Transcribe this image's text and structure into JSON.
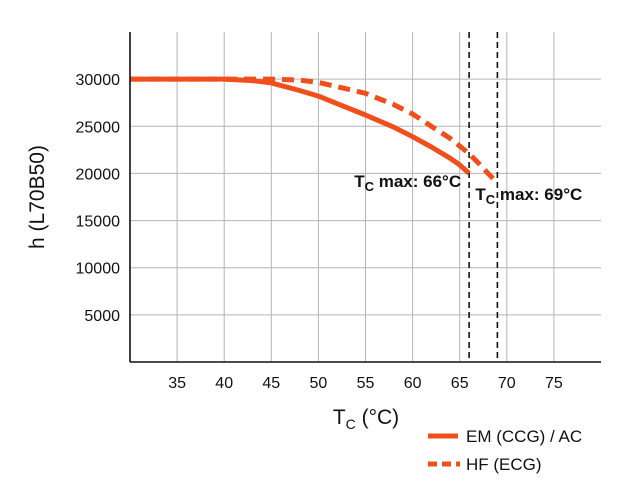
{
  "chart_data": {
    "type": "line",
    "xlabel": "T",
    "xlabel_sub": "C",
    "xlabel_unit": " (°C)",
    "ylabel": "h (L70B50)",
    "xlim": [
      30,
      80
    ],
    "ylim": [
      0,
      35000
    ],
    "x_ticks": [
      "35",
      "40",
      "45",
      "50",
      "55",
      "60",
      "65",
      "70",
      "75"
    ],
    "y_ticks": [
      "5000",
      "10000",
      "15000",
      "20000",
      "25000",
      "30000"
    ],
    "grid": true,
    "legend_position": "bottom-right",
    "colors": {
      "series": "#f04e1a",
      "grid": "#b5b5b5",
      "axis": "#111111"
    },
    "series": [
      {
        "name": "EM (CCG) / AC",
        "style": "solid",
        "x": [
          30,
          35,
          40,
          43,
          45,
          48,
          50,
          52,
          55,
          58,
          60,
          62,
          64,
          65,
          66
        ],
        "y": [
          30000,
          30000,
          30000,
          29850,
          29600,
          28800,
          28200,
          27400,
          26200,
          24900,
          23900,
          22800,
          21600,
          20900,
          20000
        ]
      },
      {
        "name": "HF (ECG)",
        "style": "dashed",
        "x": [
          30,
          35,
          40,
          45,
          48,
          50,
          52,
          55,
          58,
          60,
          62,
          64,
          66,
          67,
          68,
          69
        ],
        "y": [
          30000,
          30000,
          30000,
          30000,
          29900,
          29650,
          29200,
          28500,
          27300,
          26300,
          25000,
          23700,
          22100,
          21100,
          20000,
          19000
        ]
      }
    ],
    "vlines": [
      66,
      69
    ],
    "annotations": [
      {
        "main": "T",
        "sub": "C",
        "rest": " max: 66°C"
      },
      {
        "main": "T",
        "sub": "C",
        "rest": " max: 69°C"
      }
    ]
  }
}
